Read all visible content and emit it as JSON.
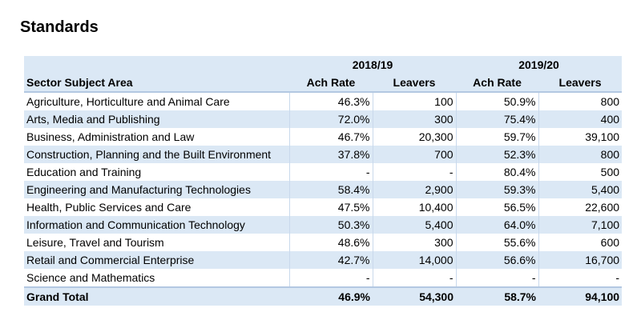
{
  "title": "Standards",
  "table": {
    "periods": [
      "2018/19",
      "2019/20"
    ],
    "columns": [
      "Sector Subject Area",
      "Ach Rate",
      "Leavers",
      "Ach Rate",
      "Leavers"
    ],
    "rows": [
      [
        "Agriculture, Horticulture and Animal Care",
        "46.3%",
        "100",
        "50.9%",
        "800"
      ],
      [
        "Arts, Media and Publishing",
        "72.0%",
        "300",
        "75.4%",
        "400"
      ],
      [
        "Business, Administration and Law",
        "46.7%",
        "20,300",
        "59.7%",
        "39,100"
      ],
      [
        "Construction, Planning and the Built Environment",
        "37.8%",
        "700",
        "52.3%",
        "800"
      ],
      [
        "Education and Training",
        "-",
        "-",
        "80.4%",
        "500"
      ],
      [
        "Engineering and Manufacturing Technologies",
        "58.4%",
        "2,900",
        "59.3%",
        "5,400"
      ],
      [
        "Health, Public Services and Care",
        "47.5%",
        "10,400",
        "56.5%",
        "22,600"
      ],
      [
        "Information and Communication Technology",
        "50.3%",
        "5,400",
        "64.0%",
        "7,100"
      ],
      [
        "Leisure, Travel and Tourism",
        "48.6%",
        "300",
        "55.6%",
        "600"
      ],
      [
        "Retail and Commercial Enterprise",
        "42.7%",
        "14,000",
        "56.6%",
        "16,700"
      ],
      [
        "Science and Mathematics",
        "-",
        "-",
        "-",
        "-"
      ]
    ],
    "total": [
      "Grand Total",
      "46.9%",
      "54,300",
      "58.7%",
      "94,100"
    ]
  }
}
